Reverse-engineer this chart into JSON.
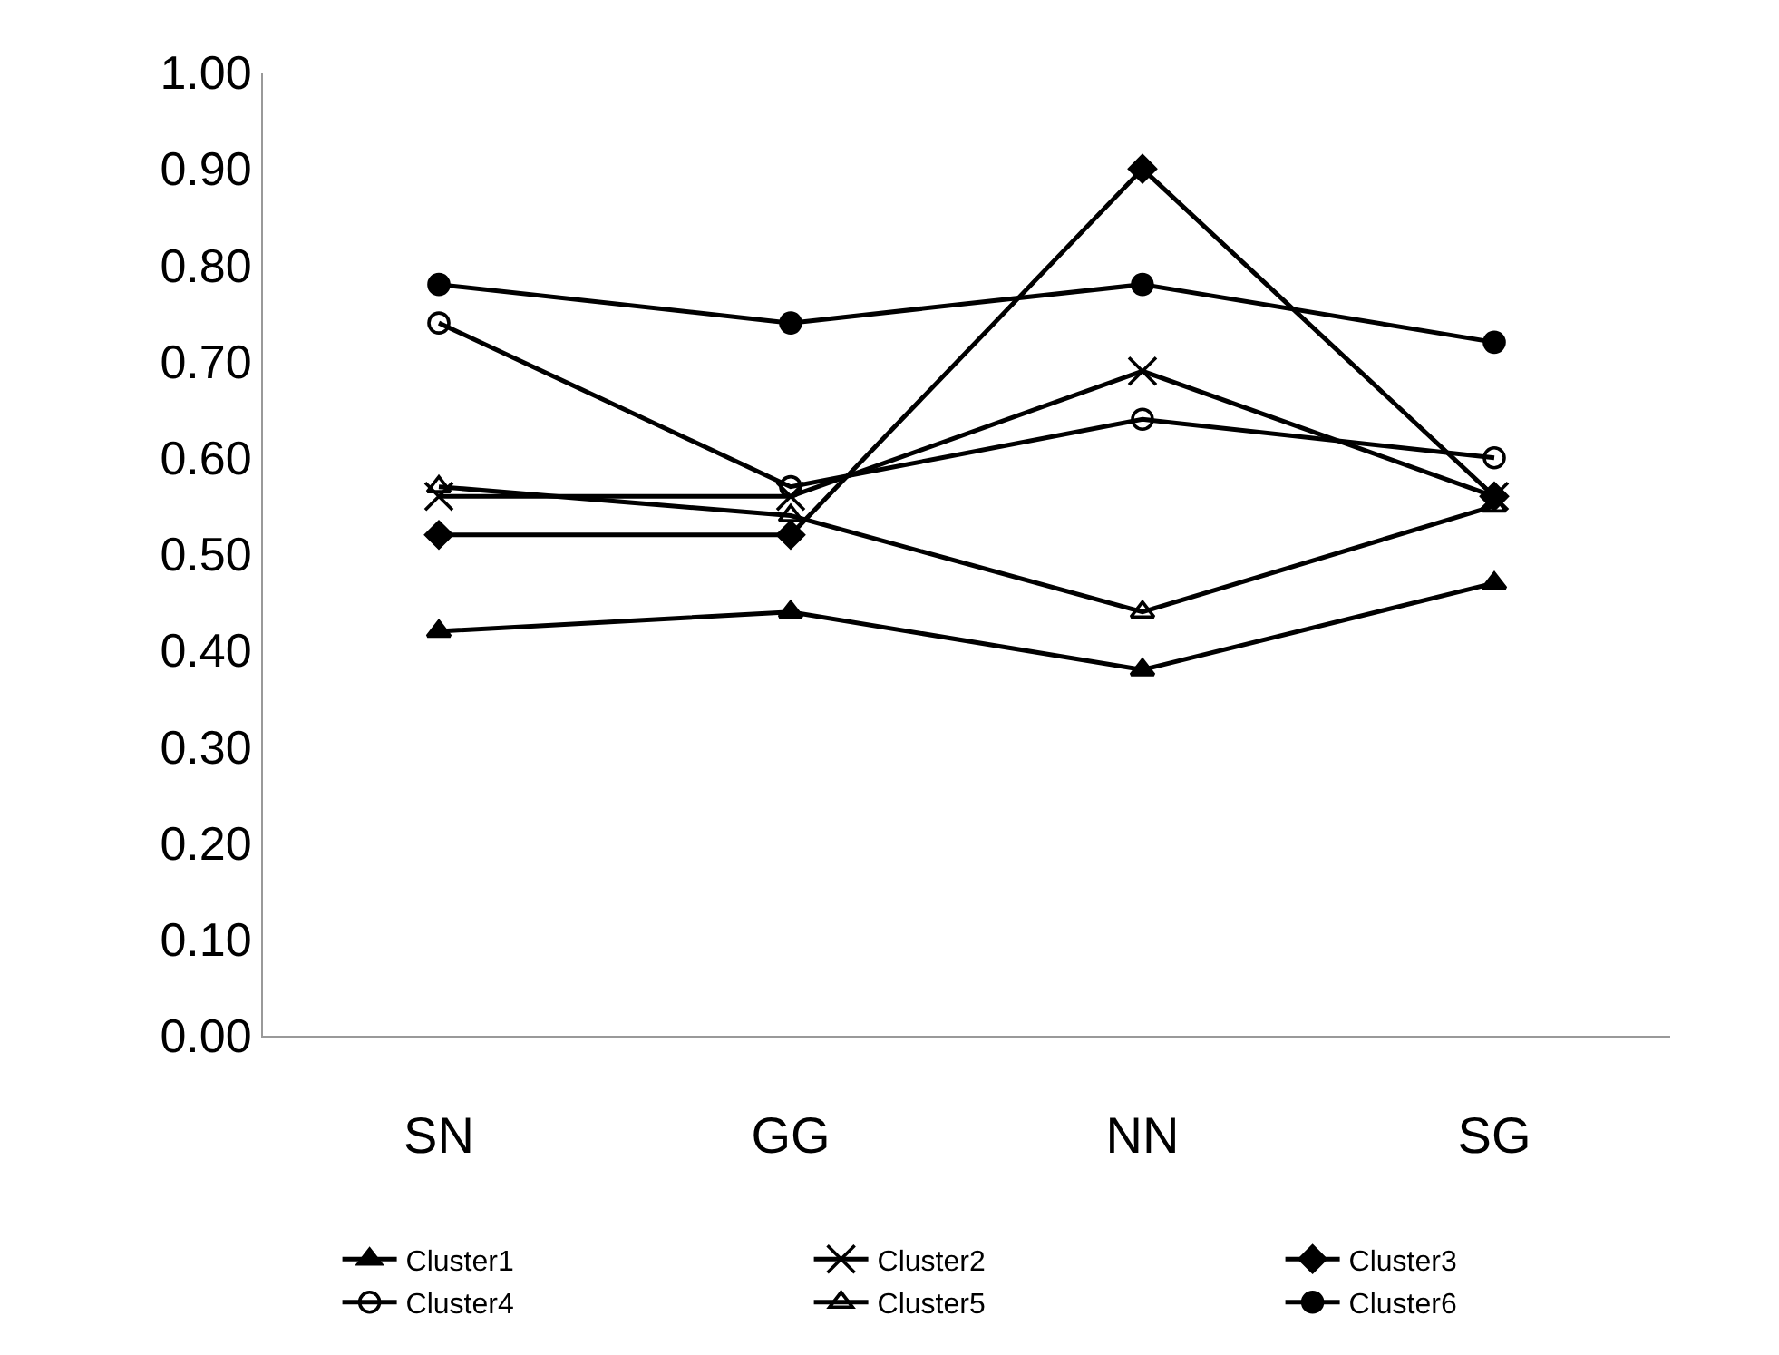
{
  "chart_data": {
    "type": "line",
    "categories": [
      "SN",
      "GG",
      "NN",
      "SG"
    ],
    "ylim": [
      0,
      1
    ],
    "yticks": [
      {
        "value": 0,
        "label": "0.00"
      },
      {
        "value": 0.1,
        "label": "0.10"
      },
      {
        "value": 0.2,
        "label": "0.20"
      },
      {
        "value": 0.3,
        "label": "0.30"
      },
      {
        "value": 0.4,
        "label": "0.40"
      },
      {
        "value": 0.5,
        "label": "0.50"
      },
      {
        "value": 0.6,
        "label": "0.60"
      },
      {
        "value": 0.7,
        "label": "0.70"
      },
      {
        "value": 0.8,
        "label": "0.80"
      },
      {
        "value": 0.9,
        "label": "0.90"
      },
      {
        "value": 1,
        "label": "1.00"
      }
    ],
    "grid": false,
    "legend": "bottom",
    "line_style": "solid",
    "series": [
      {
        "name": "Cluster1",
        "color": "#000000",
        "marker": "triangle",
        "values": [
          0.42,
          0.44,
          0.38,
          0.47
        ]
      },
      {
        "name": "Cluster2",
        "color": "#000000",
        "marker": "cross",
        "values": [
          0.56,
          0.56,
          0.69,
          0.56
        ]
      },
      {
        "name": "Cluster3",
        "color": "#000000",
        "marker": "diamond",
        "values": [
          0.52,
          0.52,
          0.9,
          0.56
        ]
      },
      {
        "name": "Cluster4",
        "color": "#000000",
        "marker": "circle-open",
        "values": [
          0.74,
          0.57,
          0.64,
          0.6
        ]
      },
      {
        "name": "Cluster5",
        "color": "#000000",
        "marker": "triangle-open",
        "values": [
          0.57,
          0.54,
          0.44,
          0.55
        ]
      },
      {
        "name": "Cluster6",
        "color": "#000000",
        "marker": "circle",
        "values": [
          0.78,
          0.74,
          0.78,
          0.72
        ]
      }
    ]
  }
}
